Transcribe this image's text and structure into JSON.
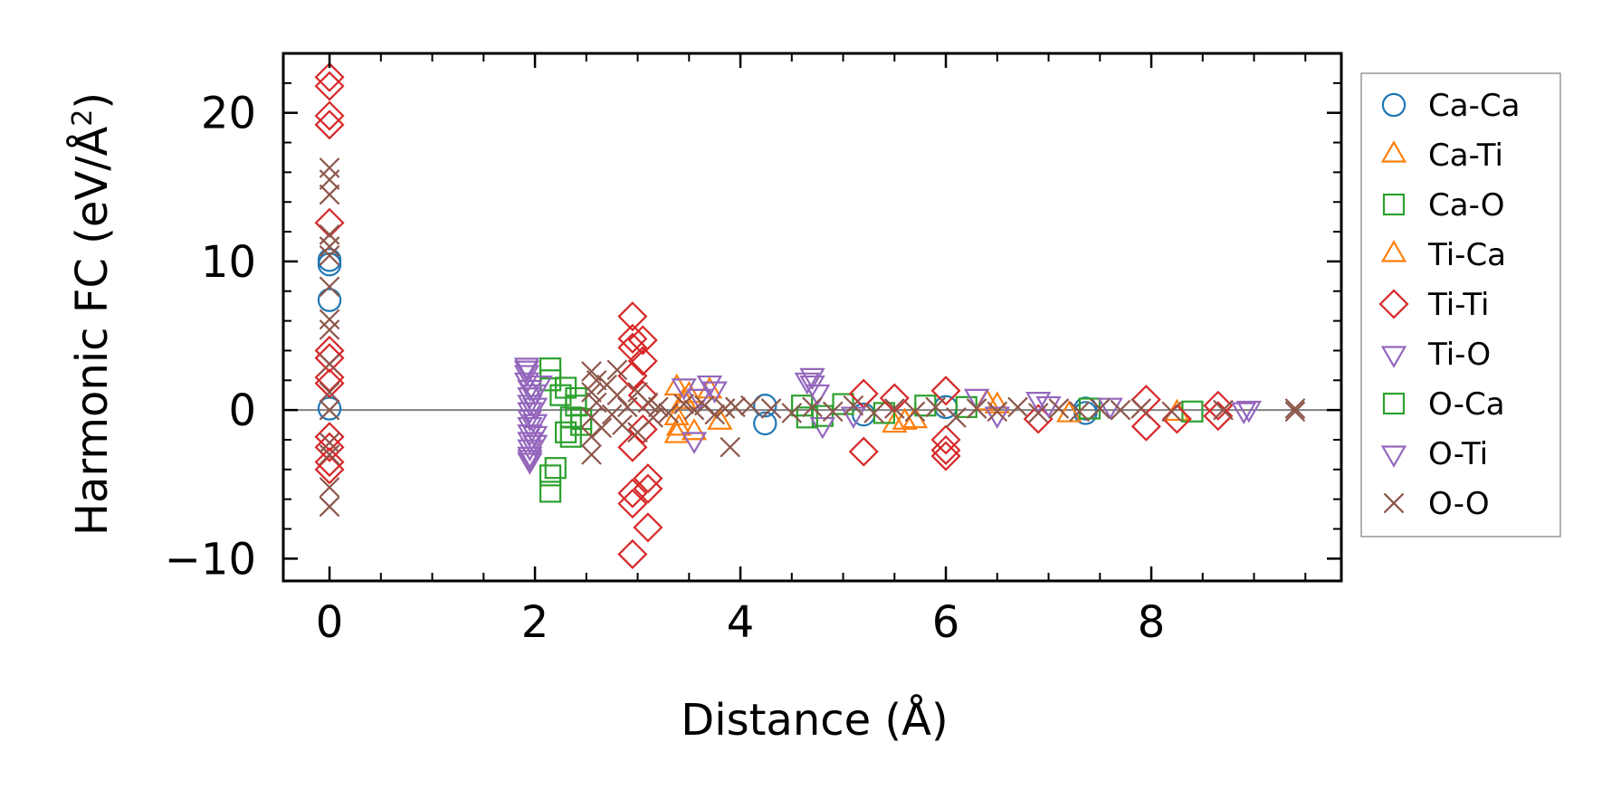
{
  "chart_data": {
    "type": "scatter",
    "xlabel": "Distance (Å)",
    "ylabel_main": "Harmonic FC (eV/Å",
    "ylabel_sup": "2",
    "ylabel_close": ")",
    "xlim": [
      -0.45,
      9.85
    ],
    "ylim": [
      -11.5,
      24.0
    ],
    "xticks": [
      0,
      2,
      4,
      6,
      8
    ],
    "xtick_labels": [
      "0",
      "2",
      "4",
      "6",
      "8"
    ],
    "yticks": [
      -10,
      0,
      10,
      20
    ],
    "ytick_labels": [
      "−10",
      "0",
      "10",
      "20"
    ],
    "x_minor_step": 0.5,
    "y_minor_step": 2,
    "zero_line": true,
    "grid": false,
    "legend_position": "outside-right",
    "series": [
      {
        "name": "Ca-Ca",
        "marker": "circle",
        "color": "#1f77b4",
        "points": [
          [
            0,
            7.4
          ],
          [
            0,
            9.8
          ],
          [
            0,
            10.1
          ],
          [
            0,
            0.1
          ],
          [
            4.24,
            -0.9
          ],
          [
            4.24,
            0.3
          ],
          [
            5.2,
            -0.3
          ],
          [
            6.0,
            0.2
          ],
          [
            7.36,
            -0.2
          ],
          [
            7.36,
            0.1
          ]
        ]
      },
      {
        "name": "Ca-Ti",
        "marker": "triangle-up",
        "color": "#ff7f0e",
        "points": [
          [
            3.38,
            -1.7
          ],
          [
            3.38,
            1.5
          ],
          [
            3.38,
            -0.5
          ],
          [
            3.45,
            0.6
          ],
          [
            3.55,
            -1.5
          ],
          [
            3.7,
            1.3
          ],
          [
            3.8,
            -0.8
          ],
          [
            5.5,
            -1.0
          ],
          [
            5.7,
            -0.7
          ],
          [
            6.5,
            0.3
          ],
          [
            7.2,
            -0.3
          ],
          [
            8.25,
            -0.2
          ]
        ]
      },
      {
        "name": "Ca-O",
        "marker": "square",
        "color": "#2ca02c",
        "points": [
          [
            2.15,
            -5.5
          ],
          [
            2.15,
            -4.4
          ],
          [
            2.15,
            2.8
          ],
          [
            2.15,
            2.0
          ],
          [
            2.2,
            -3.9
          ],
          [
            2.25,
            1.0
          ],
          [
            2.3,
            -1.5
          ],
          [
            2.35,
            -0.5
          ],
          [
            2.4,
            0.8
          ],
          [
            2.45,
            -1.0
          ],
          [
            4.6,
            0.3
          ],
          [
            4.8,
            -0.4
          ],
          [
            5.0,
            0.4
          ],
          [
            5.4,
            -0.2
          ],
          [
            6.2,
            0.2
          ],
          [
            7.4,
            0.1
          ],
          [
            8.4,
            -0.1
          ]
        ]
      },
      {
        "name": "Ti-Ca",
        "marker": "triangle-up",
        "color": "#ff7f0e",
        "points": [
          [
            3.4,
            -1.2
          ],
          [
            3.5,
            1.0
          ],
          [
            5.6,
            -0.8
          ],
          [
            6.4,
            0.5
          ]
        ]
      },
      {
        "name": "Ti-Ti",
        "marker": "diamond",
        "color": "#d62728",
        "points": [
          [
            0,
            22.4
          ],
          [
            0,
            21.8
          ],
          [
            0,
            19.8
          ],
          [
            0,
            19.2
          ],
          [
            0,
            12.6
          ],
          [
            0,
            4.0
          ],
          [
            0,
            3.5
          ],
          [
            0,
            2.2
          ],
          [
            0,
            1.8
          ],
          [
            0,
            -1.8
          ],
          [
            0,
            -2.5
          ],
          [
            0,
            -3.5
          ],
          [
            0,
            -4.0
          ],
          [
            2.95,
            6.3
          ],
          [
            2.95,
            4.8
          ],
          [
            2.95,
            4.2
          ],
          [
            2.95,
            2.3
          ],
          [
            2.95,
            -2.5
          ],
          [
            2.95,
            -5.6
          ],
          [
            2.95,
            -6.3
          ],
          [
            2.95,
            -9.7
          ],
          [
            3.05,
            4.7
          ],
          [
            3.05,
            3.3
          ],
          [
            3.05,
            1.0
          ],
          [
            3.05,
            -1.3
          ],
          [
            3.1,
            -4.6
          ],
          [
            3.1,
            -5.3
          ],
          [
            3.1,
            -7.9
          ],
          [
            5.2,
            1.1
          ],
          [
            5.2,
            -2.8
          ],
          [
            5.5,
            0.8
          ],
          [
            6.0,
            1.3
          ],
          [
            6.0,
            -2.0
          ],
          [
            6.0,
            -2.7
          ],
          [
            6.0,
            -3.1
          ],
          [
            6.9,
            -0.6
          ],
          [
            7.95,
            0.7
          ],
          [
            7.95,
            -1.1
          ],
          [
            8.25,
            -0.6
          ],
          [
            8.65,
            0.3
          ],
          [
            8.65,
            -0.4
          ]
        ]
      },
      {
        "name": "Ti-O",
        "marker": "triangle-down",
        "color": "#9467bd",
        "points": [
          [
            1.92,
            3.0
          ],
          [
            1.92,
            2.5
          ],
          [
            1.92,
            2.0
          ],
          [
            1.95,
            1.5
          ],
          [
            1.95,
            1.0
          ],
          [
            1.95,
            0.5
          ],
          [
            1.95,
            0.0
          ],
          [
            1.95,
            -0.5
          ],
          [
            1.95,
            -1.0
          ],
          [
            1.95,
            -1.5
          ],
          [
            1.95,
            -2.0
          ],
          [
            1.95,
            -2.5
          ],
          [
            1.95,
            -3.0
          ],
          [
            1.95,
            -3.4
          ],
          [
            2.0,
            0.3
          ],
          [
            2.0,
            -0.8
          ],
          [
            2.0,
            -2.2
          ],
          [
            2.05,
            1.8
          ],
          [
            3.45,
            1.6
          ],
          [
            3.55,
            -2.0
          ],
          [
            3.7,
            1.8
          ],
          [
            3.75,
            1.4
          ],
          [
            4.7,
            2.3
          ],
          [
            4.7,
            1.8
          ],
          [
            4.75,
            1.2
          ],
          [
            4.8,
            -1.0
          ],
          [
            5.1,
            -0.3
          ],
          [
            6.3,
            0.9
          ],
          [
            6.5,
            -0.3
          ],
          [
            6.9,
            0.7
          ],
          [
            7.6,
            0.3
          ],
          [
            8.9,
            0.0
          ],
          [
            8.95,
            0.1
          ]
        ]
      },
      {
        "name": "O-Ca",
        "marker": "square",
        "color": "#2ca02c",
        "points": [
          [
            2.3,
            1.5
          ],
          [
            2.35,
            -1.8
          ],
          [
            2.4,
            0.3
          ],
          [
            2.45,
            -0.6
          ],
          [
            4.65,
            -0.5
          ],
          [
            5.8,
            0.3
          ]
        ]
      },
      {
        "name": "O-Ti",
        "marker": "triangle-down",
        "color": "#9467bd",
        "points": [
          [
            1.92,
            2.8
          ],
          [
            1.95,
            -3.2
          ],
          [
            2.0,
            1.2
          ],
          [
            2.0,
            -1.6
          ],
          [
            3.6,
            0.9
          ],
          [
            4.65,
            2.0
          ],
          [
            7.0,
            0.4
          ]
        ]
      },
      {
        "name": "O-O",
        "marker": "cross",
        "color": "#8c564b",
        "points": [
          [
            0,
            16.3
          ],
          [
            0,
            15.5
          ],
          [
            0,
            14.5
          ],
          [
            0,
            11.8
          ],
          [
            0,
            11.0
          ],
          [
            0,
            10.4
          ],
          [
            0,
            8.3
          ],
          [
            0,
            6.1
          ],
          [
            0,
            5.4
          ],
          [
            0,
            3.1
          ],
          [
            0,
            1.2
          ],
          [
            0,
            0.0
          ],
          [
            0,
            -2.2
          ],
          [
            0,
            -3.0
          ],
          [
            0,
            -5.2
          ],
          [
            0,
            -6.5
          ],
          [
            2.55,
            2.6
          ],
          [
            2.55,
            1.2
          ],
          [
            2.55,
            -0.5
          ],
          [
            2.55,
            -1.8
          ],
          [
            2.55,
            -3.0
          ],
          [
            2.6,
            2.0
          ],
          [
            2.6,
            0.5
          ],
          [
            2.65,
            -1.2
          ],
          [
            2.7,
            1.7
          ],
          [
            2.75,
            -0.3
          ],
          [
            2.8,
            2.7
          ],
          [
            2.8,
            1.0
          ],
          [
            2.85,
            -1.0
          ],
          [
            2.9,
            0.2
          ],
          [
            3.0,
            1.2
          ],
          [
            3.0,
            -1.5
          ],
          [
            3.1,
            0.5
          ],
          [
            3.15,
            -0.5
          ],
          [
            3.2,
            0.2
          ],
          [
            3.3,
            -0.2
          ],
          [
            3.45,
            0.4
          ],
          [
            3.55,
            0.0
          ],
          [
            3.65,
            0.3
          ],
          [
            3.75,
            -0.3
          ],
          [
            3.85,
            0.1
          ],
          [
            3.9,
            -2.5
          ],
          [
            3.95,
            0.2
          ],
          [
            4.1,
            0.3
          ],
          [
            4.3,
            0.1
          ],
          [
            4.5,
            -0.2
          ],
          [
            4.7,
            0.2
          ],
          [
            4.9,
            -0.1
          ],
          [
            5.1,
            0.3
          ],
          [
            5.3,
            -0.2
          ],
          [
            5.5,
            0.1
          ],
          [
            5.7,
            -0.1
          ],
          [
            5.9,
            0.2
          ],
          [
            6.1,
            -0.5
          ],
          [
            6.3,
            0.1
          ],
          [
            6.5,
            -0.1
          ],
          [
            6.7,
            0.2
          ],
          [
            6.9,
            -0.2
          ],
          [
            7.1,
            0.1
          ],
          [
            7.3,
            -0.1
          ],
          [
            7.5,
            0.1
          ],
          [
            7.7,
            0.0
          ],
          [
            7.9,
            0.1
          ],
          [
            8.2,
            -0.1
          ],
          [
            8.7,
            0.0
          ],
          [
            9.4,
            0.1
          ],
          [
            9.4,
            -0.1
          ]
        ]
      }
    ]
  }
}
